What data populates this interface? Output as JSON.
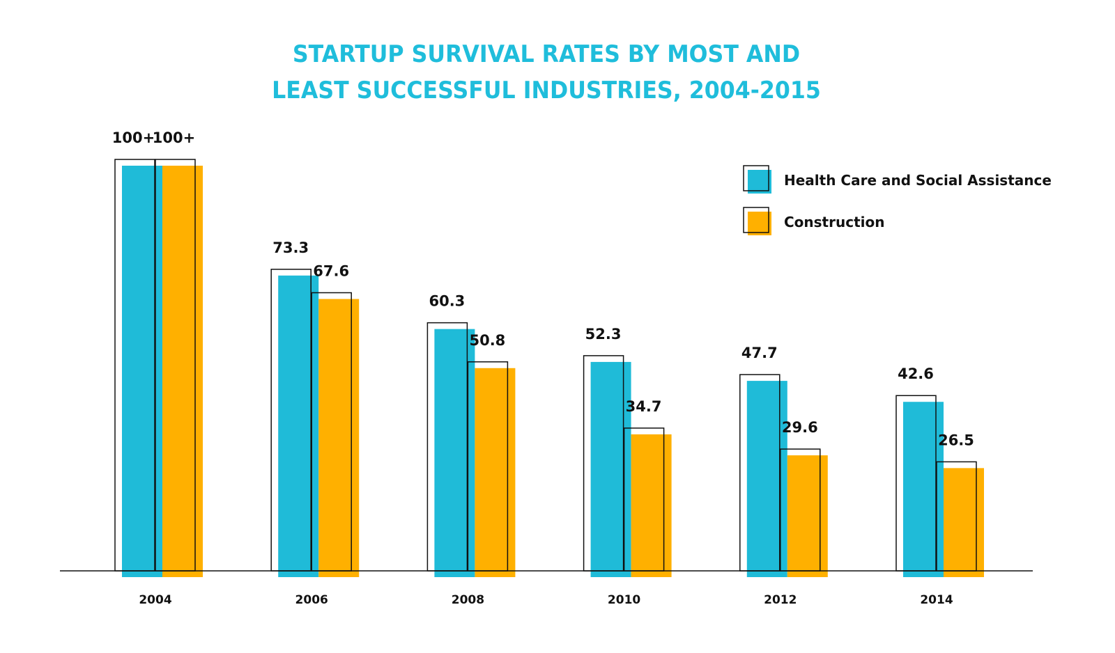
{
  "chart_data": {
    "type": "bar",
    "title": "STARTUP SURVIVAL RATES BY MOST AND LEAST SUCCESSFUL INDUSTRIES, 2004-2015",
    "title_lines": [
      "STARTUP SURVIVAL RATES BY MOST AND",
      "LEAST SUCCESSFUL INDUSTRIES, 2004-2015"
    ],
    "xlabel": "",
    "ylabel": "",
    "categories": [
      "2004",
      "2006",
      "2008",
      "2010",
      "2012",
      "2014"
    ],
    "series": [
      {
        "name": "Health Care and Social Assistance",
        "color": "#1fbbd8",
        "values": [
          100,
          73.3,
          60.3,
          52.3,
          47.7,
          42.6
        ],
        "labels": [
          "100+",
          "73.3",
          "60.3",
          "52.3",
          "47.7",
          "42.6"
        ]
      },
      {
        "name": "Construction",
        "color": "#ffb000",
        "values": [
          100,
          67.6,
          50.8,
          34.7,
          29.6,
          26.5
        ],
        "labels": [
          "100+",
          "67.6",
          "50.8",
          "34.7",
          "29.6",
          "26.5"
        ]
      }
    ],
    "ylim": [
      0,
      100
    ],
    "grid": false,
    "legend_position": "top-right",
    "y_axis_visible": false
  }
}
